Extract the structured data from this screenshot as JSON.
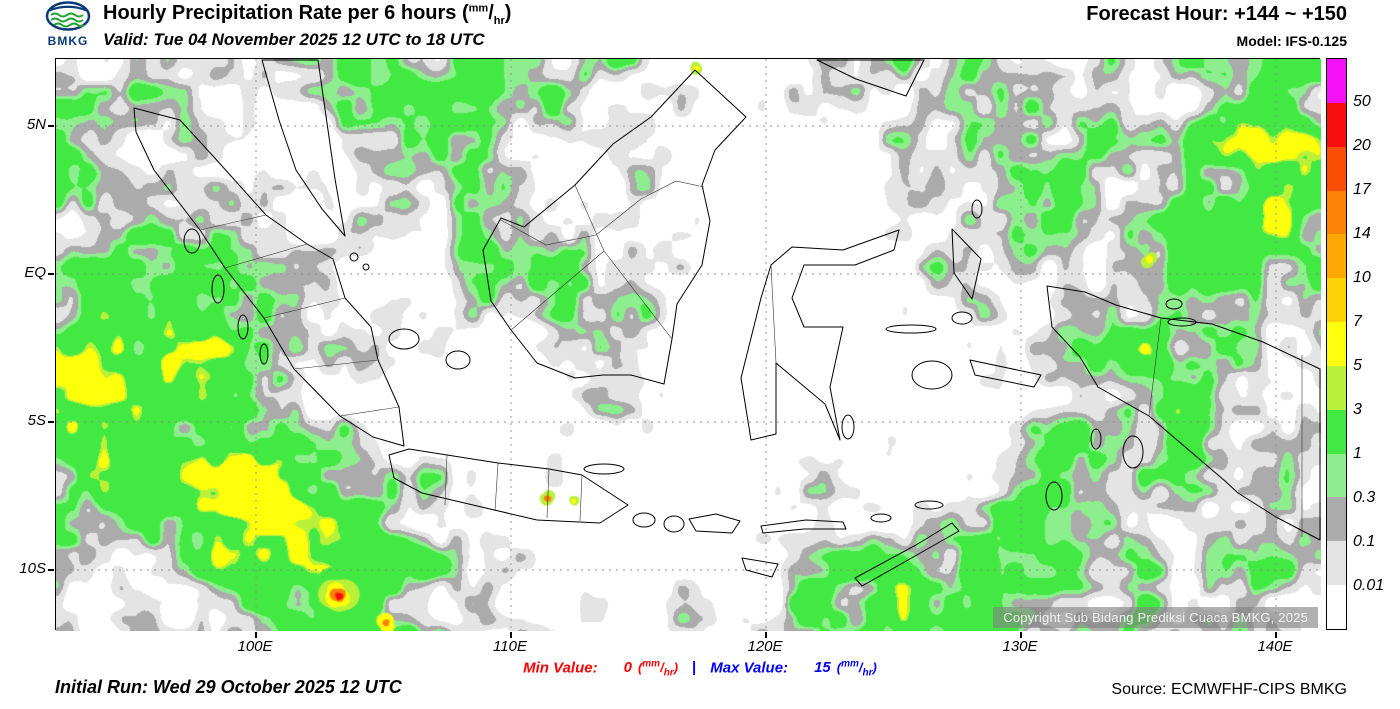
{
  "header": {
    "logo": {
      "text": "BMKG",
      "icon": "bmkg-globe-waves-icon"
    },
    "title": {
      "prefix": "Hourly Precipitation Rate per 6 hours (",
      "unit_sup": "mm",
      "unit_slash": "/",
      "unit_sub": "hr",
      "suffix": ")"
    },
    "valid": "Valid: Tue 04 November 2025 12 UTC to 18 UTC",
    "forecast_hour": "Forecast Hour: +144 ~ +150",
    "model": "Model: IFS-0.125"
  },
  "map": {
    "lat_labels": [
      "5N",
      "EQ",
      "5S",
      "10S"
    ],
    "lon_labels": [
      "100E",
      "110E",
      "120E",
      "130E",
      "140E"
    ],
    "copyright": "Copyright Sub Bidang Prediksi Cuaca BMKG, 2025"
  },
  "legend": {
    "values": [
      "50",
      "20",
      "17",
      "14",
      "10",
      "7",
      "5",
      "3",
      "1",
      "0.3",
      "0.1",
      "0.01"
    ],
    "colors": [
      "#f711f7",
      "#f90f0f",
      "#fb4e04",
      "#fd8204",
      "#fea903",
      "#fed305",
      "#feff0a",
      "#b8f03a",
      "#43e943",
      "#8cee8c",
      "#ababab",
      "#e4e4e4",
      "#ffffff"
    ]
  },
  "footer": {
    "min": {
      "label": "Min Value:",
      "value": "0",
      "color": "#ff0000"
    },
    "max": {
      "label": "Max Value:",
      "value": "15",
      "color": "#0000ff"
    },
    "separator": "|",
    "unit_open": "(",
    "unit_sup": "mm",
    "unit_slash": "/",
    "unit_sub": "hr",
    "unit_close": ")",
    "initial_run": "Initial Run: Wed 29 October 2025 12 UTC",
    "source": "Source: ECMWFHF-CIPS BMKG"
  }
}
